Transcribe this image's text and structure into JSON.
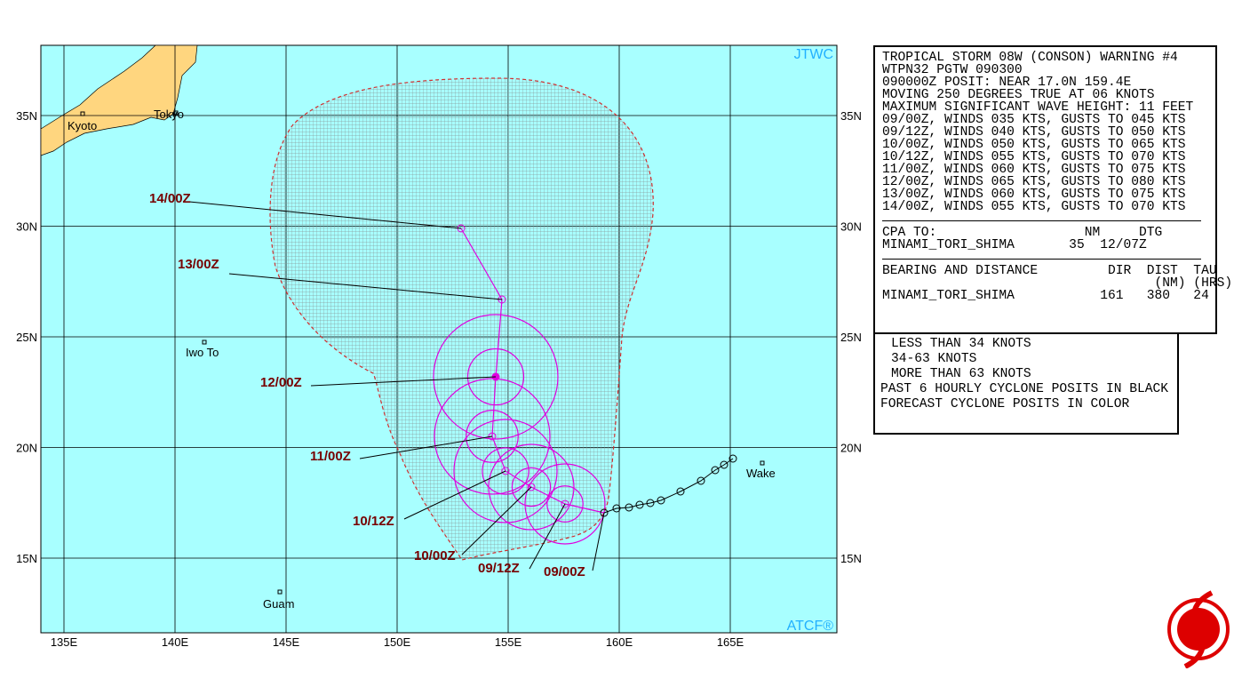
{
  "map": {
    "agency": "JTWC",
    "credit": "ATCF®",
    "lon_labels": [
      "135E",
      "140E",
      "145E",
      "150E",
      "155E",
      "160E",
      "165E"
    ],
    "lat_labels": [
      "35N",
      "30N",
      "25N",
      "20N",
      "15N"
    ],
    "places": [
      "Kyoto",
      "Tokyo",
      "Iwo To",
      "Guam",
      "Wake"
    ],
    "forecast_labels": [
      "09/00Z",
      "09/12Z",
      "10/00Z",
      "10/12Z",
      "11/00Z",
      "12/00Z",
      "13/00Z",
      "14/00Z"
    ]
  },
  "warning": {
    "lines": [
      "TROPICAL STORM 08W (CONSON) WARNING #4",
      "WTPN32 PGTW 090300",
      "090000Z POSIT: NEAR 17.0N 159.4E",
      "MOVING 250 DEGREES TRUE AT 06 KNOTS",
      "MAXIMUM SIGNIFICANT WAVE HEIGHT: 11 FEET",
      "09/00Z, WINDS 035 KTS, GUSTS TO 045 KTS",
      "09/12Z, WINDS 040 KTS, GUSTS TO 050 KTS",
      "10/00Z, WINDS 050 KTS, GUSTS TO 065 KTS",
      "10/12Z, WINDS 055 KTS, GUSTS TO 070 KTS",
      "11/00Z, WINDS 060 KTS, GUSTS TO 075 KTS",
      "12/00Z, WINDS 065 KTS, GUSTS TO 080 KTS",
      "13/00Z, WINDS 060 KTS, GUSTS TO 075 KTS",
      "14/00Z, WINDS 055 KTS, GUSTS TO 070 KTS"
    ],
    "cpa_lines": [
      "CPA TO:                   NM     DTG",
      "MINAMI_TORI_SHIMA       35  12/07Z"
    ],
    "bearing_lines": [
      "BEARING AND DISTANCE         DIR  DIST  TAU",
      "                                   (NM) (HRS)",
      "MINAMI_TORI_SHIMA           161   380   24"
    ]
  },
  "legend": [
    "LESS THAN 34 KNOTS",
    "34-63 KNOTS",
    "MORE THAN 63 KNOTS",
    "PAST 6 HOURLY CYCLONE POSITS IN BLACK",
    "FORECAST CYCLONE POSITS IN COLOR"
  ]
}
